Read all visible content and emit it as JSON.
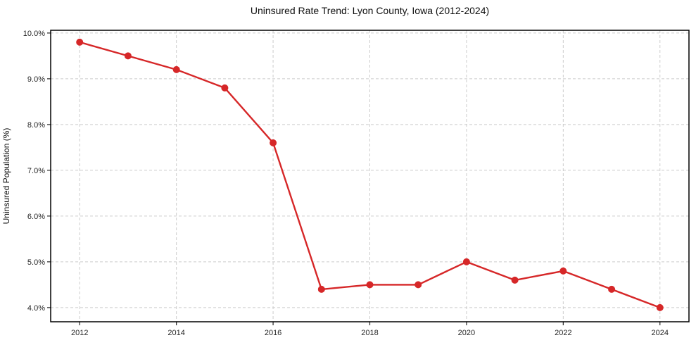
{
  "chart_data": {
    "type": "line",
    "title": "Uninsured Rate Trend: Lyon County, Iowa (2012-2024)",
    "xlabel": "",
    "ylabel": "Uninsured Population (%)",
    "x": [
      2012,
      2013,
      2014,
      2015,
      2016,
      2017,
      2018,
      2019,
      2020,
      2021,
      2022,
      2023,
      2024
    ],
    "values": [
      9.8,
      9.5,
      9.2,
      8.8,
      7.6,
      4.4,
      4.5,
      4.5,
      5.0,
      4.6,
      4.8,
      4.4,
      4.0
    ],
    "xlim": [
      2011.4,
      2024.6
    ],
    "ylim": [
      3.69,
      10.06
    ],
    "x_ticks": [
      2012,
      2014,
      2016,
      2018,
      2020,
      2022,
      2024
    ],
    "x_tick_labels": [
      "2012",
      "2014",
      "2016",
      "2018",
      "2020",
      "2022",
      "2024"
    ],
    "y_ticks": [
      4,
      5,
      6,
      7,
      8,
      9,
      10
    ],
    "y_tick_labels": [
      "4.0%",
      "5.0%",
      "6.0%",
      "7.0%",
      "8.0%",
      "9.0%",
      "10.0%"
    ],
    "grid": true,
    "grid_style": "dashed",
    "legend": false,
    "marker": "circle",
    "line_color": "#d62728",
    "grid_color": "#cccccc",
    "spine_color": "#000000",
    "background": "#ffffff"
  }
}
